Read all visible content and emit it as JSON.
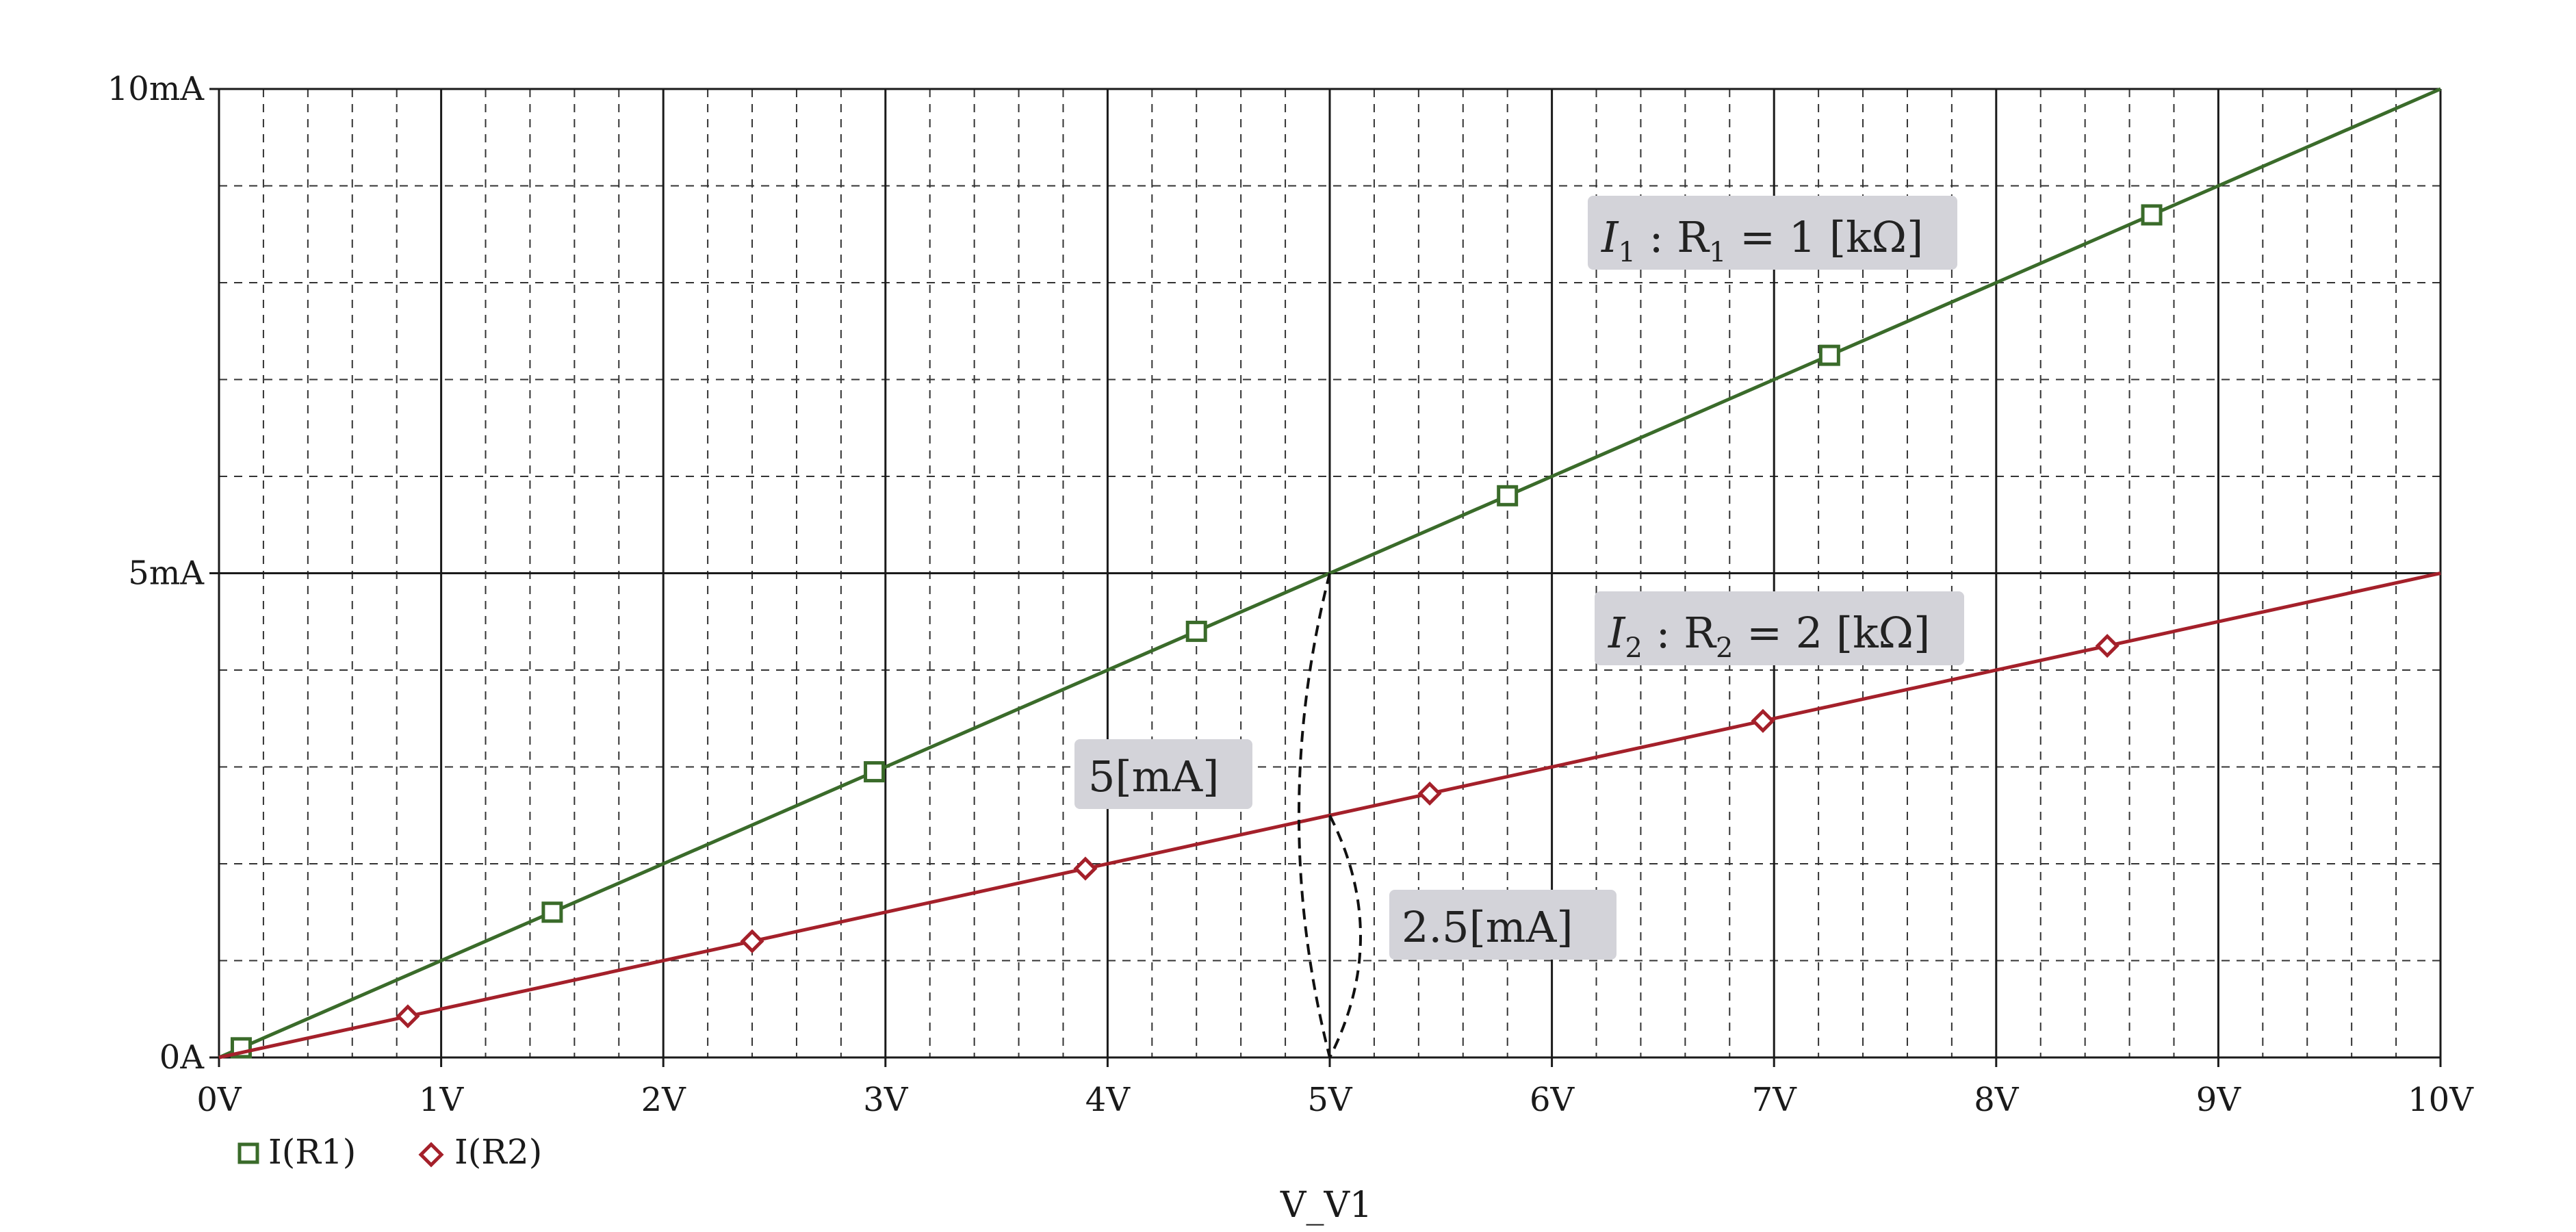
{
  "chart_data": {
    "type": "line",
    "title": "",
    "xlabel": "V_V1",
    "ylabel": "",
    "xlim": [
      0,
      10
    ],
    "ylim": [
      0,
      10
    ],
    "x_unit": "V",
    "y_unit": "mA",
    "x_tick_labels": [
      "0V",
      "1V",
      "2V",
      "3V",
      "4V",
      "5V",
      "6V",
      "7V",
      "8V",
      "9V",
      "10V"
    ],
    "y_tick_labels": [
      {
        "value": 0,
        "label": "0A"
      },
      {
        "value": 5,
        "label": "5mA"
      },
      {
        "value": 10,
        "label": "10mA"
      }
    ],
    "grid": true,
    "legend_position": "bottom-left",
    "series": [
      {
        "name": "I(R1)",
        "color": "#3a6b2a",
        "marker": "square",
        "x": [
          0,
          10
        ],
        "y": [
          0,
          10
        ],
        "marker_x": [
          0.1,
          1.5,
          2.95,
          4.4,
          5.8,
          7.25,
          8.7
        ]
      },
      {
        "name": "I(R2)",
        "color": "#a4202a",
        "marker": "diamond",
        "x": [
          0,
          10
        ],
        "y": [
          0,
          5
        ],
        "marker_x": [
          0.85,
          2.4,
          3.9,
          5.45,
          6.95,
          8.5
        ]
      }
    ],
    "annotations": [
      {
        "id": "r1",
        "text": "I1 : R1 = 1 [kΩ]",
        "main": "I",
        "sub1": "1",
        "mid": " : R",
        "sub2": "1",
        "tail": " = 1 [kΩ]"
      },
      {
        "id": "r2",
        "text": "I2 : R2 = 2 [kΩ]",
        "main": "I",
        "sub1": "2",
        "mid": " : R",
        "sub2": "2",
        "tail": " = 2 [kΩ]"
      },
      {
        "id": "i1",
        "text": "5[mA]"
      },
      {
        "id": "i2",
        "text": "2.5[mA]"
      }
    ]
  }
}
